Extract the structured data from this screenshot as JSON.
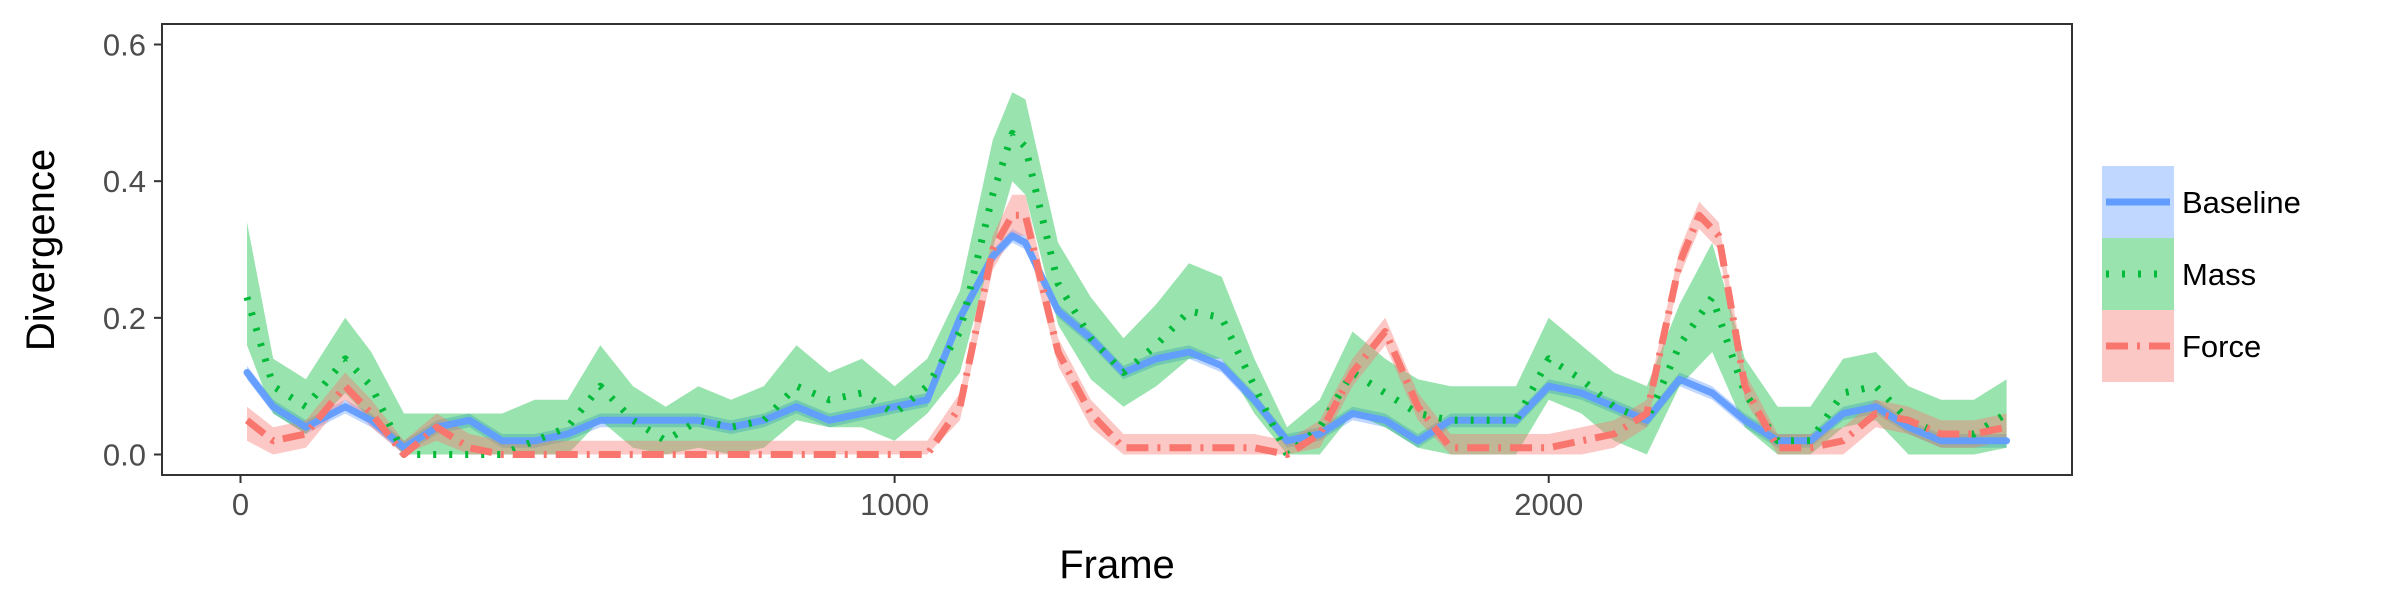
{
  "chart_data": {
    "type": "line",
    "title": "",
    "xlabel": "Frame",
    "ylabel": "Divergence",
    "xlim": [
      -120,
      2800
    ],
    "ylim": [
      -0.03,
      0.63
    ],
    "x_ticks": [
      0,
      1000,
      2000
    ],
    "x_tick_labels": [
      "0",
      "1000",
      "2000"
    ],
    "y_ticks": [
      0.0,
      0.2,
      0.4,
      0.6
    ],
    "y_tick_labels": [
      "0.0",
      "0.2",
      "0.4",
      "0.6"
    ],
    "grid": false,
    "legend_position": "right",
    "series": [
      {
        "name": "Baseline",
        "color": "#619CFF",
        "line_style": "solid",
        "x": [
          10,
          50,
          100,
          160,
          200,
          250,
          300,
          350,
          400,
          450,
          500,
          550,
          600,
          650,
          700,
          750,
          800,
          850,
          900,
          950,
          1000,
          1050,
          1100,
          1150,
          1180,
          1200,
          1250,
          1300,
          1350,
          1400,
          1450,
          1500,
          1550,
          1600,
          1650,
          1700,
          1750,
          1800,
          1850,
          1900,
          1950,
          2000,
          2050,
          2100,
          2150,
          2200,
          2250,
          2300,
          2350,
          2400,
          2450,
          2500,
          2550,
          2600,
          2650,
          2700
        ],
        "y": [
          0.12,
          0.07,
          0.04,
          0.07,
          0.05,
          0.01,
          0.04,
          0.05,
          0.02,
          0.02,
          0.03,
          0.05,
          0.05,
          0.05,
          0.05,
          0.04,
          0.05,
          0.07,
          0.05,
          0.06,
          0.07,
          0.08,
          0.2,
          0.29,
          0.32,
          0.31,
          0.21,
          0.17,
          0.12,
          0.14,
          0.15,
          0.13,
          0.08,
          0.02,
          0.03,
          0.06,
          0.05,
          0.02,
          0.05,
          0.05,
          0.05,
          0.1,
          0.09,
          0.07,
          0.05,
          0.11,
          0.09,
          0.05,
          0.02,
          0.02,
          0.06,
          0.07,
          0.04,
          0.02,
          0.02,
          0.02
        ],
        "upper": [
          0.13,
          0.08,
          0.05,
          0.08,
          0.06,
          0.02,
          0.05,
          0.06,
          0.03,
          0.03,
          0.04,
          0.06,
          0.06,
          0.06,
          0.06,
          0.05,
          0.06,
          0.08,
          0.06,
          0.07,
          0.08,
          0.09,
          0.21,
          0.3,
          0.33,
          0.32,
          0.22,
          0.18,
          0.13,
          0.15,
          0.16,
          0.14,
          0.09,
          0.03,
          0.04,
          0.07,
          0.06,
          0.03,
          0.06,
          0.06,
          0.06,
          0.11,
          0.1,
          0.08,
          0.06,
          0.12,
          0.1,
          0.06,
          0.03,
          0.03,
          0.07,
          0.08,
          0.05,
          0.03,
          0.03,
          0.03
        ],
        "lower": [
          0.11,
          0.06,
          0.03,
          0.06,
          0.04,
          0.0,
          0.03,
          0.04,
          0.01,
          0.01,
          0.02,
          0.04,
          0.04,
          0.04,
          0.04,
          0.03,
          0.04,
          0.06,
          0.04,
          0.05,
          0.06,
          0.07,
          0.19,
          0.28,
          0.31,
          0.3,
          0.2,
          0.16,
          0.11,
          0.13,
          0.14,
          0.12,
          0.07,
          0.01,
          0.02,
          0.05,
          0.04,
          0.01,
          0.04,
          0.04,
          0.04,
          0.09,
          0.08,
          0.06,
          0.04,
          0.1,
          0.08,
          0.04,
          0.01,
          0.01,
          0.05,
          0.06,
          0.03,
          0.01,
          0.01,
          0.01
        ]
      },
      {
        "name": "Mass",
        "color": "#00BA38",
        "line_style": "dotted",
        "x": [
          10,
          50,
          100,
          160,
          200,
          250,
          300,
          350,
          400,
          450,
          500,
          550,
          600,
          650,
          700,
          750,
          800,
          850,
          900,
          950,
          1000,
          1050,
          1100,
          1150,
          1180,
          1200,
          1250,
          1300,
          1350,
          1400,
          1450,
          1500,
          1550,
          1600,
          1650,
          1700,
          1750,
          1800,
          1850,
          1900,
          1950,
          2000,
          2050,
          2100,
          2150,
          2200,
          2250,
          2300,
          2350,
          2400,
          2450,
          2500,
          2550,
          2600,
          2650,
          2700
        ],
        "y": [
          0.23,
          0.1,
          0.07,
          0.14,
          0.1,
          0.0,
          0.0,
          0.0,
          0.0,
          0.02,
          0.04,
          0.1,
          0.05,
          0.02,
          0.05,
          0.04,
          0.05,
          0.1,
          0.08,
          0.09,
          0.06,
          0.1,
          0.18,
          0.38,
          0.47,
          0.45,
          0.25,
          0.17,
          0.12,
          0.16,
          0.21,
          0.2,
          0.1,
          0.0,
          0.04,
          0.12,
          0.09,
          0.06,
          0.05,
          0.05,
          0.05,
          0.14,
          0.11,
          0.07,
          0.05,
          0.16,
          0.23,
          0.09,
          0.02,
          0.02,
          0.09,
          0.1,
          0.05,
          0.03,
          0.03,
          0.06
        ],
        "upper": [
          0.34,
          0.14,
          0.11,
          0.2,
          0.15,
          0.06,
          0.06,
          0.06,
          0.06,
          0.08,
          0.08,
          0.16,
          0.1,
          0.07,
          0.1,
          0.08,
          0.1,
          0.16,
          0.12,
          0.14,
          0.1,
          0.14,
          0.24,
          0.46,
          0.53,
          0.52,
          0.31,
          0.23,
          0.17,
          0.22,
          0.28,
          0.26,
          0.14,
          0.04,
          0.08,
          0.18,
          0.14,
          0.11,
          0.1,
          0.1,
          0.1,
          0.2,
          0.16,
          0.12,
          0.1,
          0.22,
          0.31,
          0.14,
          0.07,
          0.07,
          0.14,
          0.15,
          0.1,
          0.08,
          0.08,
          0.11
        ],
        "lower": [
          0.16,
          0.06,
          0.03,
          0.09,
          0.05,
          0.0,
          0.0,
          0.0,
          0.0,
          0.0,
          0.0,
          0.05,
          0.01,
          0.0,
          0.01,
          0.0,
          0.01,
          0.05,
          0.04,
          0.04,
          0.02,
          0.06,
          0.12,
          0.3,
          0.4,
          0.38,
          0.19,
          0.11,
          0.07,
          0.1,
          0.14,
          0.14,
          0.06,
          0.0,
          0.0,
          0.06,
          0.04,
          0.01,
          0.0,
          0.0,
          0.0,
          0.08,
          0.06,
          0.02,
          0.0,
          0.1,
          0.15,
          0.04,
          0.0,
          0.0,
          0.04,
          0.05,
          0.0,
          0.0,
          0.0,
          0.01
        ]
      },
      {
        "name": "Force",
        "color": "#F8766D",
        "line_style": "dotdash",
        "x": [
          10,
          50,
          100,
          160,
          200,
          250,
          300,
          350,
          400,
          450,
          500,
          550,
          600,
          650,
          700,
          750,
          800,
          850,
          900,
          950,
          1000,
          1050,
          1100,
          1150,
          1180,
          1200,
          1250,
          1300,
          1350,
          1400,
          1450,
          1500,
          1550,
          1600,
          1650,
          1700,
          1750,
          1800,
          1850,
          1900,
          1950,
          2000,
          2050,
          2100,
          2150,
          2200,
          2230,
          2260,
          2300,
          2350,
          2400,
          2450,
          2500,
          2550,
          2600,
          2650,
          2700
        ],
        "y": [
          0.05,
          0.02,
          0.03,
          0.1,
          0.06,
          0.0,
          0.04,
          0.01,
          0.0,
          0.0,
          0.0,
          0.0,
          0.0,
          0.0,
          0.0,
          0.0,
          0.0,
          0.0,
          0.0,
          0.0,
          0.0,
          0.0,
          0.07,
          0.3,
          0.35,
          0.35,
          0.15,
          0.06,
          0.01,
          0.01,
          0.01,
          0.01,
          0.01,
          0.0,
          0.03,
          0.12,
          0.18,
          0.07,
          0.01,
          0.01,
          0.01,
          0.01,
          0.02,
          0.03,
          0.06,
          0.28,
          0.35,
          0.32,
          0.1,
          0.01,
          0.01,
          0.02,
          0.06,
          0.05,
          0.03,
          0.03,
          0.04
        ],
        "upper": [
          0.07,
          0.04,
          0.05,
          0.12,
          0.08,
          0.02,
          0.06,
          0.03,
          0.02,
          0.02,
          0.02,
          0.02,
          0.02,
          0.02,
          0.02,
          0.02,
          0.02,
          0.02,
          0.02,
          0.02,
          0.02,
          0.02,
          0.09,
          0.32,
          0.38,
          0.38,
          0.17,
          0.08,
          0.03,
          0.03,
          0.03,
          0.03,
          0.03,
          0.02,
          0.05,
          0.14,
          0.2,
          0.09,
          0.03,
          0.03,
          0.03,
          0.03,
          0.04,
          0.05,
          0.08,
          0.3,
          0.37,
          0.34,
          0.12,
          0.03,
          0.03,
          0.04,
          0.08,
          0.07,
          0.05,
          0.05,
          0.06
        ],
        "lower": [
          0.02,
          0.0,
          0.01,
          0.08,
          0.04,
          0.0,
          0.02,
          0.0,
          0.0,
          0.0,
          0.0,
          0.0,
          0.0,
          0.0,
          0.0,
          0.0,
          0.0,
          0.0,
          0.0,
          0.0,
          0.0,
          0.0,
          0.05,
          0.27,
          0.32,
          0.32,
          0.13,
          0.04,
          0.0,
          0.0,
          0.0,
          0.0,
          0.0,
          0.0,
          0.01,
          0.1,
          0.16,
          0.05,
          0.0,
          0.0,
          0.0,
          0.0,
          0.0,
          0.01,
          0.04,
          0.26,
          0.33,
          0.3,
          0.08,
          0.0,
          0.0,
          0.0,
          0.04,
          0.03,
          0.01,
          0.01,
          0.02
        ]
      }
    ]
  }
}
